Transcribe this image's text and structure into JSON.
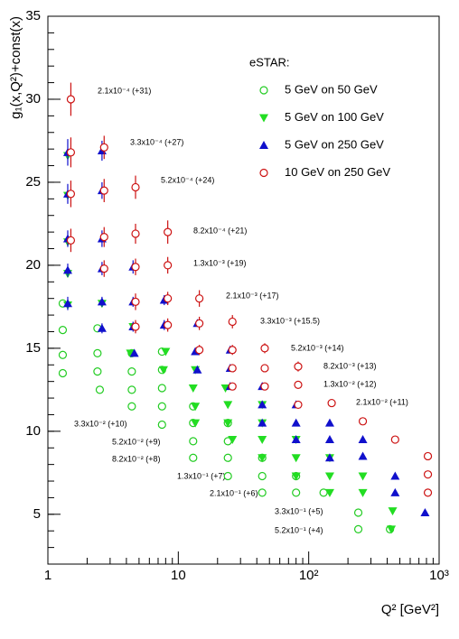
{
  "chart_data": {
    "type": "scatter",
    "log_x": true,
    "xlabel": "Q² [GeV²]",
    "ylabel": "g₁(x,Q²)+const(x)",
    "xlim": [
      1,
      1000
    ],
    "ylim": [
      2,
      35
    ],
    "xticks": [
      1,
      10,
      {
        "value": 100,
        "label": "10²"
      },
      {
        "value": 1000,
        "label": "10³"
      }
    ],
    "yticks": [
      5,
      10,
      15,
      20,
      25,
      30,
      35
    ],
    "legend_title": "eSTAR:",
    "legend_position": "upper right",
    "annotations": [
      "2.1x10⁻⁴ (+31)",
      "3.3x10⁻⁴ (+27)",
      "5.2x10⁻⁴ (+24)",
      "8.2x10⁻⁴ (+21)",
      "1.3x10⁻³ (+19)",
      "2.1x10⁻³ (+17)",
      "3.3x10⁻³ (+15.5)",
      "5.2x10⁻³ (+14)",
      "8.2x10⁻³ (+13)",
      "1.3x10⁻² (+12)",
      "2.1x10⁻² (+11)",
      "3.3x10⁻² (+10)",
      "5.2x10⁻² (+9)",
      "8.2x10⁻² (+8)",
      "1.3x10⁻¹ (+7)",
      "2.1x10⁻¹ (+6)",
      "3.3x10⁻¹ (+5)",
      "5.2x10⁻¹ (+4)"
    ],
    "series": [
      {
        "name": "5 GeV on 50 GeV",
        "color": "#22cc22",
        "marker": "open-circle",
        "x": [
          1.3,
          1.3,
          2.4,
          1.3,
          2.4,
          4.4,
          7.5,
          1.3,
          2.4,
          4.4,
          7.5,
          2.5,
          4.4,
          7.5,
          4.4,
          7.5,
          13,
          7.5,
          13,
          24,
          13,
          24,
          13,
          24,
          44,
          24,
          44,
          80,
          44,
          80,
          130,
          240,
          240,
          420
        ],
        "values": [
          17.7,
          16.1,
          16.2,
          14.6,
          14.7,
          14.7,
          14.8,
          13.5,
          13.6,
          13.6,
          13.7,
          12.5,
          12.5,
          12.6,
          11.5,
          11.5,
          11.5,
          10.4,
          10.5,
          10.5,
          9.4,
          9.4,
          8.4,
          8.4,
          8.4,
          7.3,
          7.3,
          7.3,
          6.3,
          6.3,
          6.3,
          5.1,
          4.1,
          4.1
        ]
      },
      {
        "name": "5 GeV on 100 GeV",
        "color": "#22dd22",
        "marker": "down-triangle",
        "x": [
          1.42,
          1.42,
          1.42,
          1.42,
          1.42,
          2.6,
          4.5,
          4.3,
          8,
          7.7,
          13.5,
          13,
          23,
          13.5,
          24,
          44,
          13.5,
          24,
          44,
          26,
          44,
          80,
          44,
          80,
          145,
          80,
          145,
          260,
          145,
          260,
          440,
          430
        ],
        "values": [
          26.6,
          24.2,
          21.4,
          19.5,
          17.6,
          17.7,
          16.3,
          14.7,
          14.8,
          13.7,
          13.7,
          12.6,
          12.6,
          11.5,
          11.6,
          11.6,
          10.5,
          10.5,
          10.5,
          9.5,
          9.5,
          9.5,
          8.4,
          8.4,
          8.4,
          7.3,
          7.3,
          7.3,
          6.3,
          6.3,
          5.2,
          4.1
        ]
      },
      {
        "name": "5 GeV on 250 GeV",
        "color": "#1010cc",
        "marker": "up-triangle",
        "x": [
          1.42,
          2.6,
          1.42,
          2.6,
          1.42,
          2.6,
          1.42,
          2.6,
          4.5,
          1.42,
          2.6,
          4.5,
          7.8,
          2.6,
          4.5,
          7.8,
          14,
          4.6,
          13.5,
          25,
          14,
          25,
          25,
          44,
          44,
          80,
          44,
          80,
          145,
          80,
          145,
          260,
          145,
          260,
          460,
          460,
          780
        ],
        "values": [
          26.8,
          26.9,
          24.3,
          24.5,
          21.6,
          21.6,
          19.7,
          19.8,
          19.9,
          17.7,
          17.8,
          17.8,
          17.9,
          16.2,
          16.3,
          16.4,
          16.5,
          14.7,
          14.8,
          14.9,
          13.7,
          13.8,
          12.7,
          12.7,
          11.6,
          11.6,
          10.5,
          10.5,
          10.5,
          9.5,
          9.5,
          9.5,
          8.4,
          8.5,
          7.3,
          6.3,
          5.1
        ],
        "errors": [
          0.8,
          0.6,
          0.6,
          0.5,
          0.5,
          0.5,
          0.4,
          0.4,
          0.4,
          0.4,
          0.3,
          0.3,
          0.3,
          0.3,
          0.3,
          0.3,
          0.2,
          0.1,
          0.1,
          0.1,
          0.1,
          0.1,
          0.1,
          0.1,
          0.1,
          0.1,
          0.1,
          0.1,
          0.1,
          0.1,
          0.1,
          0.1,
          0.1,
          0.1,
          0.1,
          0.1,
          0.1
        ]
      },
      {
        "name": "10 GeV on 250 GeV",
        "color": "#cc1111",
        "marker": "open-circle",
        "x": [
          1.5,
          1.5,
          2.7,
          1.5,
          2.7,
          4.7,
          1.5,
          2.7,
          4.7,
          8.3,
          2.7,
          4.7,
          8.3,
          4.7,
          8.3,
          14.5,
          4.7,
          8.3,
          14.5,
          26,
          14.5,
          26,
          46,
          26,
          46,
          83,
          26,
          46,
          83,
          83,
          150,
          260,
          460,
          820,
          820,
          820
        ],
        "values": [
          30.0,
          26.8,
          27.1,
          24.3,
          24.5,
          24.7,
          21.5,
          21.7,
          21.9,
          22.0,
          19.8,
          19.9,
          20.0,
          17.8,
          18.0,
          18.0,
          16.3,
          16.4,
          16.5,
          16.6,
          14.9,
          14.9,
          15.0,
          13.8,
          13.8,
          13.9,
          12.7,
          12.7,
          12.8,
          11.6,
          11.7,
          10.6,
          9.5,
          8.5,
          7.4,
          6.3
        ],
        "errors": [
          1.0,
          0.9,
          0.7,
          0.8,
          0.7,
          0.7,
          0.7,
          0.6,
          0.6,
          0.7,
          0.5,
          0.5,
          0.5,
          0.5,
          0.4,
          0.5,
          0.4,
          0.4,
          0.4,
          0.4,
          0.3,
          0.3,
          0.3,
          0.2,
          0.2,
          0.3,
          0.2,
          0.2,
          0.2,
          0.2,
          0.2,
          0.2,
          0.2,
          0.2,
          0.2,
          0.2
        ]
      }
    ]
  }
}
